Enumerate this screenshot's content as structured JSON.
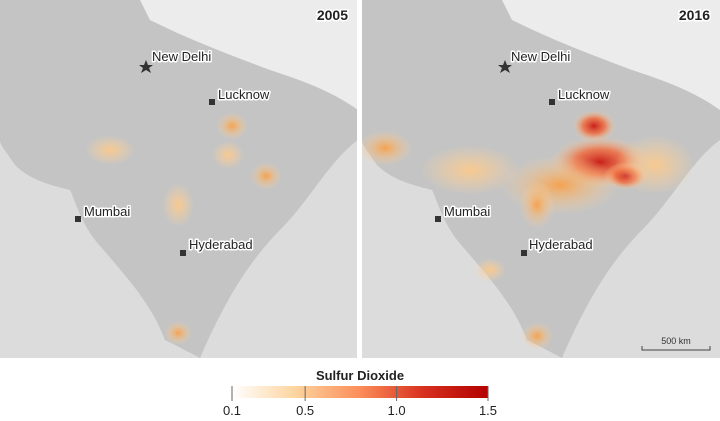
{
  "maps": [
    {
      "year": "2005",
      "places": [
        "New Delhi",
        "Lucknow",
        "Mumbai",
        "Hyderabad"
      ]
    },
    {
      "year": "2016",
      "places": [
        "New Delhi",
        "Lucknow",
        "Mumbai",
        "Hyderabad"
      ]
    }
  ],
  "scale_bar": "500 km",
  "legend": {
    "title": "Sulfur Dioxide",
    "range": [
      0.1,
      1.5
    ],
    "ticks": [
      0.1,
      0.5,
      {
        "value": 1,
        "label": "1.0"
      },
      1.5
    ],
    "colors": [
      "#ffffff",
      "#fdd49e",
      "#fc8d59",
      "#d7301f",
      "#b30000"
    ]
  }
}
